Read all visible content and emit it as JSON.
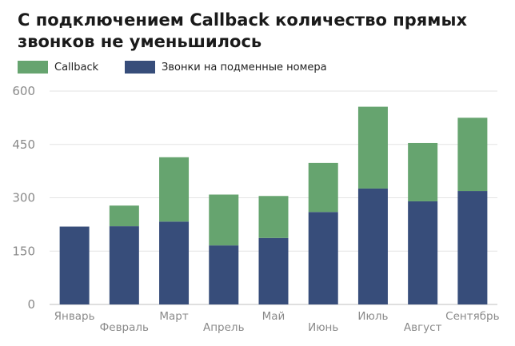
{
  "chart_data": {
    "type": "bar",
    "stacked": true,
    "title": "С подключением Callback количество прямых звонков не уменьшилось",
    "categories": [
      "Январь",
      "Февраль",
      "Март",
      "Апрель",
      "Май",
      "Июнь",
      "Июль",
      "Август",
      "Сентябрь"
    ],
    "series": [
      {
        "name": "Звонки на подменные номера",
        "color": "#374d7a",
        "values": [
          219,
          220,
          233,
          166,
          187,
          260,
          326,
          290,
          319
        ]
      },
      {
        "name": "Callback",
        "color": "#66a46f",
        "values": [
          0,
          58,
          181,
          143,
          118,
          138,
          230,
          164,
          206
        ]
      }
    ],
    "legend": {
      "position": "top-left",
      "items": [
        "Callback",
        "Звонки на подменные номера"
      ]
    },
    "ylim": [
      0,
      600
    ],
    "yticks": [
      0,
      150,
      300,
      450,
      600
    ],
    "grid": true,
    "xlabel": "",
    "ylabel": ""
  }
}
